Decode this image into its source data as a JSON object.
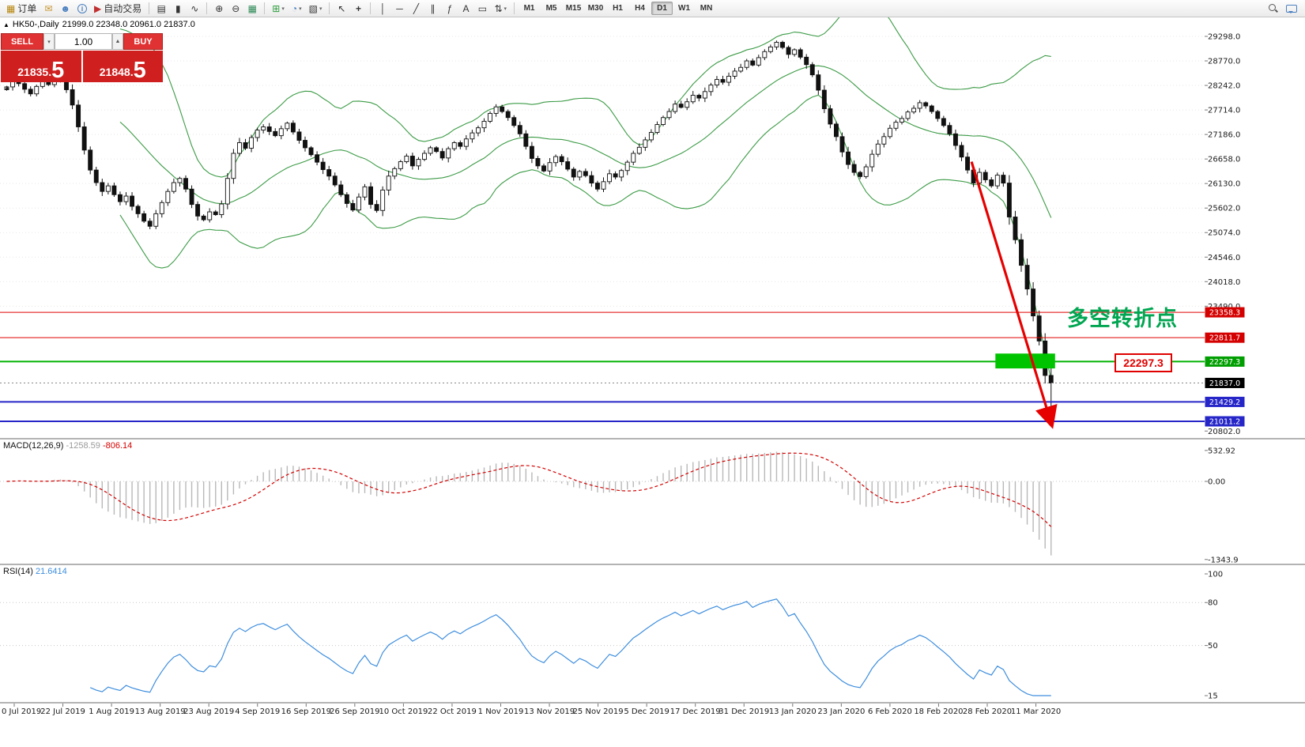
{
  "toolbar": {
    "new_order_label": "订单",
    "autotrading_label": "自动交易",
    "timeframes": [
      "M1",
      "M5",
      "M15",
      "M30",
      "H1",
      "H4",
      "D1",
      "W1",
      "MN"
    ],
    "active_timeframe": "D1"
  },
  "icons": {
    "new-order": "▦",
    "envelope": "✉",
    "profile": "☻",
    "autotrading-play": "▶",
    "bar-chart": "▤",
    "candlestick-chart": "▮",
    "line-chart": "∿",
    "zoom-in": "⊕",
    "zoom-out": "⊖",
    "tile-windows": "▦",
    "indicators": "⊞",
    "periods": "◔",
    "templates": "▧",
    "cursor": "↖",
    "crosshair": "+",
    "vertical-line": "│",
    "horizontal-line": "─",
    "trendline": "╱",
    "channel": "∥",
    "fibonacci": "ƒ",
    "text-tool": "A",
    "arrow-label": "▭",
    "shapes": "⇅",
    "dropdown": "▾",
    "collapse": "▲"
  },
  "chart_header": {
    "title": "HK50-,Daily",
    "ohlc": "21999.0 22348.0 20961.0 21837.0"
  },
  "one_click": {
    "sell_label": "SELL",
    "buy_label": "BUY",
    "volume": "1.00",
    "sell_price_main": "21835.",
    "sell_price_big": "5",
    "buy_price_main": "21848.",
    "buy_price_big": "5"
  },
  "annotations": {
    "turning_point_text": "多空转折点",
    "price_callout": "22297.3"
  },
  "indicators": {
    "macd": {
      "label": "MACD(12,26,9)",
      "value_main": "-1258.59",
      "value_signal": "-806.14",
      "axis_labels": [
        "532.92",
        "0.00",
        "-1343.9"
      ]
    },
    "rsi": {
      "label": "RSI(14)",
      "value": "21.6414",
      "axis_labels": [
        "100",
        "80",
        "50",
        "15"
      ]
    }
  },
  "chart_data": {
    "type": "candlestick",
    "symbol": "HK50-",
    "timeframe": "Daily",
    "title": "HK50-,Daily 21999.0 22348.0 20961.0 21837.0",
    "last_ohlc": {
      "open": 21999.0,
      "high": 22348.0,
      "low": 20961.0,
      "close": 21837.0
    },
    "first_open": 28150,
    "closes": [
      28210,
      28330,
      28280,
      28160,
      28060,
      28220,
      28350,
      28260,
      28480,
      28350,
      28150,
      27820,
      27350,
      26850,
      26420,
      26150,
      25960,
      26080,
      25890,
      25740,
      25860,
      25640,
      25480,
      25320,
      25210,
      25480,
      25720,
      25960,
      26150,
      26240,
      26010,
      25680,
      25430,
      25350,
      25520,
      25460,
      25690,
      26240,
      26780,
      27010,
      26890,
      27120,
      27280,
      27350,
      27250,
      27160,
      27310,
      27430,
      27240,
      27060,
      26900,
      26750,
      26590,
      26430,
      26290,
      26100,
      25890,
      25700,
      25560,
      25840,
      26060,
      25680,
      25550,
      25990,
      26290,
      26450,
      26600,
      26720,
      26510,
      26650,
      26780,
      26900,
      26820,
      26680,
      26880,
      27010,
      26930,
      27090,
      27220,
      27330,
      27470,
      27640,
      27780,
      27680,
      27550,
      27380,
      27200,
      26930,
      26670,
      26510,
      26400,
      26580,
      26710,
      26600,
      26440,
      26270,
      26390,
      26300,
      26140,
      26010,
      26170,
      26340,
      26270,
      26410,
      26590,
      26780,
      26910,
      27070,
      27230,
      27400,
      27550,
      27680,
      27840,
      27770,
      27890,
      28030,
      27970,
      28110,
      28250,
      28370,
      28310,
      28440,
      28550,
      28630,
      28770,
      28680,
      28840,
      28970,
      29070,
      29170,
      29060,
      28910,
      29010,
      28850,
      28690,
      28470,
      28140,
      27740,
      27410,
      27140,
      26810,
      26540,
      26370,
      26280,
      26490,
      26760,
      26980,
      27140,
      27320,
      27450,
      27530,
      27670,
      27750,
      27870,
      27800,
      27680,
      27530,
      27380,
      27200,
      26950,
      26700,
      26420,
      26140,
      26370,
      26210,
      26080,
      26310,
      26140,
      25410,
      24920,
      24370,
      23860,
      23280,
      22740,
      21999,
      21837
    ],
    "x_labels": [
      "0 Jul 2019",
      "22 Jul 2019",
      "1 Aug 2019",
      "13 Aug 2019",
      "23 Aug 2019",
      "4 Sep 2019",
      "16 Sep 2019",
      "26 Sep 2019",
      "10 Oct 2019",
      "22 Oct 2019",
      "1 Nov 2019",
      "13 Nov 2019",
      "25 Nov 2019",
      "5 Dec 2019",
      "17 Dec 2019",
      "31 Dec 2019",
      "13 Jan 2020",
      "23 Jan 2020",
      "6 Feb 2020",
      "18 Feb 2020",
      "28 Feb 2020",
      "11 Mar 2020"
    ],
    "y_axis_labels": [
      "29298.0",
      "28770.0",
      "28242.0",
      "27714.0",
      "27186.0",
      "26658.0",
      "26130.0",
      "25602.0",
      "25074.0",
      "24546.0",
      "24018.0",
      "23490.0",
      "20802.0"
    ],
    "levels": [
      {
        "price": 23358.3,
        "label": "23358.3",
        "color": "#e00000",
        "badge_bg": "#d40000",
        "style": "solid",
        "width": 1
      },
      {
        "price": 22811.7,
        "label": "22811.7",
        "color": "#e00000",
        "badge_bg": "#d40000",
        "style": "solid",
        "width": 1
      },
      {
        "price": 22297.3,
        "label": "22297.3",
        "color": "#00b200",
        "badge_bg": "#009e00",
        "style": "solid",
        "width": 2
      },
      {
        "price": 21837.0,
        "label": "21837.0",
        "color": "#888888",
        "badge_bg": "#000000",
        "style": "dotted",
        "width": 1
      },
      {
        "price": 21429.2,
        "label": "21429.2",
        "color": "#2626c8",
        "badge_bg": "#2626c8",
        "style": "solid",
        "width": 2
      },
      {
        "price": 21011.2,
        "label": "21011.2",
        "color": "#2626c8",
        "badge_bg": "#2626c8",
        "style": "solid",
        "width": 2
      }
    ],
    "bollinger": {
      "period": 20,
      "deviation": 2,
      "color": "#3c9b46"
    },
    "objects": {
      "green_rect": {
        "from_index": 166,
        "to_index": 176,
        "price_top": 22470,
        "price_bottom": 22150,
        "color": "#00c400"
      },
      "trend_arrow": {
        "from_index": 162,
        "from_price": 26600,
        "to_index": 175.4,
        "to_price": 20950
      }
    },
    "colors": {
      "bull": "#ffffff",
      "bear": "#111111",
      "wick": "#111111",
      "bollinger": "#3c9b46",
      "macd_hist": "#b8b8b8",
      "macd_signal": "#d40000",
      "rsi_line": "#3e8ede",
      "trend_arrow": "#e60000",
      "level_red": "#e00000",
      "level_green": "#00b200",
      "level_blue": "#2626c8"
    }
  }
}
